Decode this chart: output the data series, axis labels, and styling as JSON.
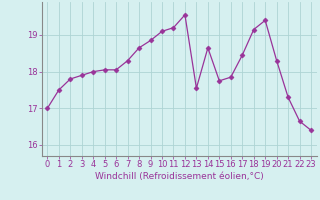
{
  "x": [
    0,
    1,
    2,
    3,
    4,
    5,
    6,
    7,
    8,
    9,
    10,
    11,
    12,
    13,
    14,
    15,
    16,
    17,
    18,
    19,
    20,
    21,
    22,
    23
  ],
  "y": [
    17.0,
    17.5,
    17.8,
    17.9,
    18.0,
    18.05,
    18.05,
    18.3,
    18.65,
    18.85,
    19.1,
    19.2,
    19.55,
    17.55,
    18.65,
    17.75,
    17.85,
    18.45,
    19.15,
    19.4,
    18.3,
    17.3,
    16.65,
    16.4
  ],
  "line_color": "#993399",
  "marker": "D",
  "marker_size": 2.5,
  "bg_color": "#d6f0f0",
  "grid_color": "#aed4d4",
  "xlabel": "Windchill (Refroidissement éolien,°C)",
  "xlabel_color": "#993399",
  "xlabel_fontsize": 6.5,
  "tick_color": "#993399",
  "tick_fontsize": 6,
  "yticks": [
    16,
    17,
    18,
    19
  ],
  "xticks": [
    0,
    1,
    2,
    3,
    4,
    5,
    6,
    7,
    8,
    9,
    10,
    11,
    12,
    13,
    14,
    15,
    16,
    17,
    18,
    19,
    20,
    21,
    22,
    23
  ],
  "ylim": [
    15.7,
    19.9
  ],
  "xlim": [
    -0.5,
    23.5
  ]
}
